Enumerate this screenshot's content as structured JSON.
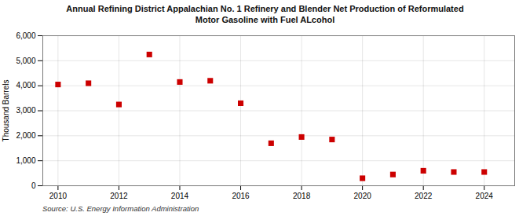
{
  "chart_data": {
    "type": "scatter",
    "title": "Annual Refining District Appalachian No. 1 Refinery and Blender Net Production of Reformulated\nMotor Gasoline with Fuel ALcohol",
    "ylabel": "Thousand Barrels",
    "annotations": [
      "Source: U.S. Energy Information Administration"
    ],
    "x": [
      2010,
      2011,
      2012,
      2013,
      2014,
      2015,
      2016,
      2017,
      2018,
      2019,
      2020,
      2021,
      2022,
      2023,
      2024
    ],
    "values": [
      4050,
      4100,
      3250,
      5250,
      4150,
      4200,
      3300,
      1700,
      1950,
      1850,
      300,
      450,
      600,
      550,
      550
    ],
    "color": "#cc0000",
    "marker": "square",
    "xlim": [
      2009.5,
      2025.0
    ],
    "xticks": [
      2010,
      2012,
      2014,
      2016,
      2018,
      2020,
      2022,
      2024
    ],
    "ylim": [
      0,
      6000
    ],
    "yticks": [
      0,
      {
        "value": 1000,
        "label": "1,000"
      },
      {
        "value": 2000,
        "label": "2,000"
      },
      {
        "value": 3000,
        "label": "3,000"
      },
      {
        "value": 4000,
        "label": "4,000"
      },
      {
        "value": 5000,
        "label": "5,000"
      },
      {
        "value": 6000,
        "label": "6,000"
      }
    ],
    "grid": true
  }
}
